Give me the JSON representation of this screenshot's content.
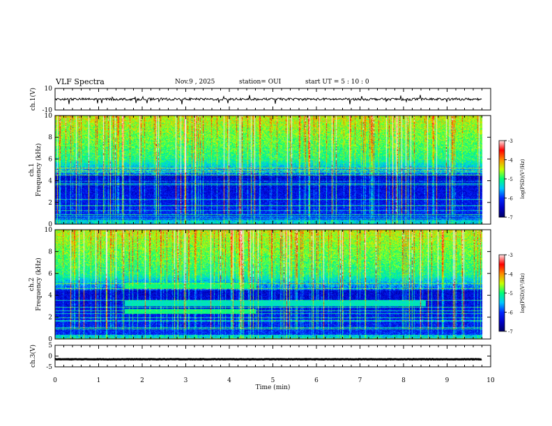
{
  "header": {
    "title": "VLF Spectra",
    "date": "Nov.9 , 2025",
    "station": "station= OUI",
    "start": "start UT = 5 : 10 : 0"
  },
  "chart_data": [
    {
      "type": "line",
      "name": "ch1-waveform",
      "ylabel": "ch.1(V)",
      "ylim": [
        -10,
        10
      ],
      "yticks": [
        "10",
        "-10"
      ],
      "xlim": [
        0,
        10
      ],
      "baseline": 0
    },
    {
      "type": "heatmap",
      "name": "ch1-spectrogram",
      "ylabel_line1": "ch.1",
      "ylabel_line2": "Frequency (kHz)",
      "ylim": [
        0,
        10
      ],
      "yticks": [
        "0",
        "2",
        "4",
        "6",
        "8",
        "10"
      ],
      "xlim": [
        0,
        10
      ],
      "data_extent_min": 9.8,
      "colorbar": {
        "label": "log(PSD)(V²/Hz)",
        "range": [
          -7,
          -3
        ],
        "ticks": [
          "-3",
          "-4",
          "-5",
          "-6",
          "-7"
        ],
        "colors": [
          "#ffffff",
          "#ff0000",
          "#ffff00",
          "#00ff00",
          "#00ffff",
          "#0000ff",
          "#000066"
        ]
      }
    },
    {
      "type": "heatmap",
      "name": "ch2-spectrogram",
      "ylabel_line1": "ch.2",
      "ylabel_line2": "Frequency (kHz)",
      "ylim": [
        0,
        10
      ],
      "yticks": [
        "0",
        "2",
        "4",
        "6",
        "8",
        "10"
      ],
      "xlim": [
        0,
        10
      ],
      "data_extent_min": 9.8,
      "emission_band_khz": [
        3.0,
        3.6
      ],
      "emission_span_min": [
        1.6,
        8.5
      ],
      "colorbar": {
        "label": "log(PSD)(V²/Hz)",
        "range": [
          -7,
          -3
        ],
        "ticks": [
          "-3",
          "-4",
          "-5",
          "-6",
          "-7"
        ],
        "colors": [
          "#ffffff",
          "#ff0000",
          "#ffff00",
          "#00ff00",
          "#00ffff",
          "#0000ff",
          "#000066"
        ]
      }
    },
    {
      "type": "line",
      "name": "ch3-waveform",
      "ylabel": "ch.3(V)",
      "ylim": [
        -5,
        5
      ],
      "yticks": [
        "5",
        "0",
        "-5"
      ],
      "xlim": [
        0,
        10
      ],
      "baseline": -1.5
    }
  ],
  "xaxis": {
    "label": "Time (min)",
    "ticks": [
      "0",
      "1",
      "2",
      "3",
      "4",
      "5",
      "6",
      "7",
      "8",
      "9",
      "10"
    ]
  }
}
